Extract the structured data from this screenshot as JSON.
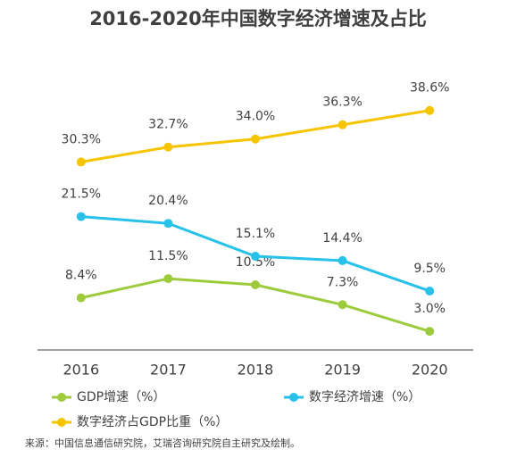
{
  "chart_data": {
    "type": "line",
    "title": "2016-2020年中国数字经济增速及占比",
    "categories": [
      "2016",
      "2017",
      "2018",
      "2019",
      "2020"
    ],
    "series": [
      {
        "name": "GDP增速（%）",
        "color": "#9dcb3c",
        "values": [
          8.4,
          11.5,
          10.5,
          7.3,
          3.0
        ],
        "value_labels": [
          "8.4%",
          "11.5%",
          "10.5%",
          "7.3%",
          "3.0%"
        ]
      },
      {
        "name": "数字经济增速（%）",
        "color": "#27c1e9",
        "values": [
          21.5,
          20.4,
          15.1,
          14.4,
          9.5
        ],
        "value_labels": [
          "21.5%",
          "20.4%",
          "15.1%",
          "14.4%",
          "9.5%"
        ]
      },
      {
        "name": "数字经济占GDP比重（%）",
        "color": "#f7c400",
        "values": [
          30.3,
          32.7,
          34.0,
          36.3,
          38.6
        ],
        "value_labels": [
          "30.3%",
          "32.7%",
          "34.0%",
          "36.3%",
          "38.6%"
        ]
      }
    ],
    "ylim": [
      0,
      40
    ],
    "source": "来源：中国信息通信研究院，艾瑞咨询研究院自主研究及绘制。"
  }
}
